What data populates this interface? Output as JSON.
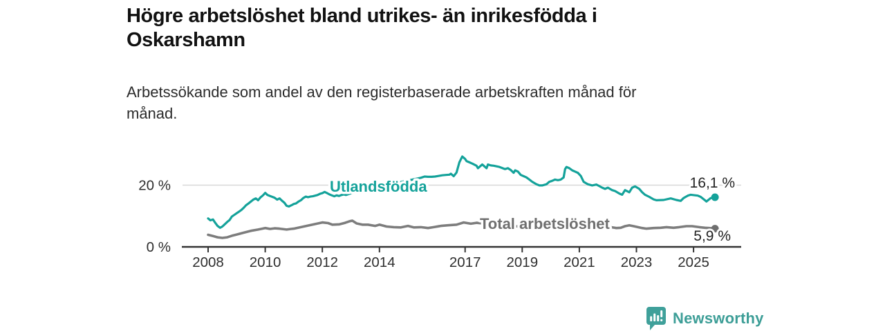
{
  "header": {
    "title": "Högre arbetslöshet bland utrikes- än inrikesfödda i Oskarshamn",
    "subtitle": "Arbetssökande som andel av den registerbaserade arbetskraften månad för månad."
  },
  "footer": {
    "brand": "Newsworthy",
    "logo_icon": "bar-chart-speech-bubble-icon"
  },
  "colors": {
    "accent_teal": "#14a29a",
    "series_gray": "#7d7d7d",
    "gray_label": "#6f6f6f",
    "axis": "#333333",
    "tick_text": "#2e2e2e",
    "value_text": "#222222",
    "gridline": "#d8d8d8",
    "logo_teal": "#3d9e97",
    "background": "#ffffff"
  },
  "chart_data": {
    "type": "line",
    "x_unit": "decimal_year",
    "x_ticks": [
      2008,
      2010,
      2012,
      2014,
      2017,
      2019,
      2021,
      2023,
      2025
    ],
    "y_ticks": [
      {
        "value": 0,
        "label": "0 %"
      },
      {
        "value": 20,
        "label": "20 %"
      }
    ],
    "xlim": [
      2007.1,
      2026.7
    ],
    "ylim": [
      0,
      30
    ],
    "grid": "single horizontal gridline at 20 %",
    "legend_position": "inline-labels-on-lines",
    "series": [
      {
        "name": "Utlandsfödda",
        "color": "#14a29a",
        "end_label": "16,1 %",
        "end_value": 16.1,
        "points": [
          [
            2008,
            9.2
          ],
          [
            2008.08,
            8.6
          ],
          [
            2008.17,
            8.9
          ],
          [
            2008.25,
            7.8
          ],
          [
            2008.33,
            6.8
          ],
          [
            2008.42,
            6.2
          ],
          [
            2008.5,
            6.6
          ],
          [
            2008.58,
            7.3
          ],
          [
            2008.67,
            8.1
          ],
          [
            2008.75,
            8.7
          ],
          [
            2008.83,
            9.8
          ],
          [
            2008.92,
            10.4
          ],
          [
            2009,
            10.9
          ],
          [
            2009.08,
            11.4
          ],
          [
            2009.17,
            12
          ],
          [
            2009.25,
            12.7
          ],
          [
            2009.33,
            13.5
          ],
          [
            2009.42,
            14.1
          ],
          [
            2009.5,
            14.7
          ],
          [
            2009.58,
            15.3
          ],
          [
            2009.67,
            15.7
          ],
          [
            2009.75,
            15.1
          ],
          [
            2009.83,
            16
          ],
          [
            2009.92,
            16.7
          ],
          [
            2010,
            17.5
          ],
          [
            2010.08,
            16.8
          ],
          [
            2010.17,
            16.5
          ],
          [
            2010.25,
            16.2
          ],
          [
            2010.33,
            15.9
          ],
          [
            2010.42,
            15.3
          ],
          [
            2010.5,
            15.7
          ],
          [
            2010.58,
            15
          ],
          [
            2010.67,
            14.3
          ],
          [
            2010.75,
            13.3
          ],
          [
            2010.83,
            13.1
          ],
          [
            2010.92,
            13.5
          ],
          [
            2011,
            13.9
          ],
          [
            2011.08,
            14.1
          ],
          [
            2011.17,
            14.7
          ],
          [
            2011.25,
            15.1
          ],
          [
            2011.33,
            15.8
          ],
          [
            2011.42,
            16.3
          ],
          [
            2011.5,
            16.1
          ],
          [
            2011.58,
            16.3
          ],
          [
            2011.67,
            16.4
          ],
          [
            2011.75,
            16.6
          ],
          [
            2011.83,
            16.8
          ],
          [
            2011.92,
            17.2
          ],
          [
            2012,
            17.4
          ],
          [
            2012.08,
            17.8
          ],
          [
            2012.17,
            17.4
          ],
          [
            2012.25,
            17
          ],
          [
            2012.33,
            16.7
          ],
          [
            2012.42,
            16.4
          ],
          [
            2012.5,
            16.7
          ],
          [
            2012.58,
            16.5
          ],
          [
            2012.67,
            16.8
          ],
          [
            2012.75,
            17
          ],
          [
            2012.83,
            16.8
          ],
          [
            2012.92,
            17.1
          ],
          [
            2013,
            17.4
          ],
          [
            2013.25,
            17.8
          ],
          [
            2013.5,
            18.3
          ],
          [
            2013.75,
            18.7
          ],
          [
            2014,
            19.2
          ],
          [
            2014.25,
            19.8
          ],
          [
            2014.5,
            20.4
          ],
          [
            2014.75,
            21
          ],
          [
            2015,
            21.5
          ],
          [
            2015.25,
            22
          ],
          [
            2015.45,
            22.4
          ],
          [
            2015.58,
            22.8
          ],
          [
            2015.7,
            22.7
          ],
          [
            2015.83,
            22.7
          ],
          [
            2015.95,
            22.8
          ],
          [
            2016.08,
            23
          ],
          [
            2016.2,
            23.2
          ],
          [
            2016.33,
            23.3
          ],
          [
            2016.45,
            23.4
          ],
          [
            2016.5,
            23.7
          ],
          [
            2016.6,
            22.9
          ],
          [
            2016.7,
            24.1
          ],
          [
            2016.8,
            27.4
          ],
          [
            2016.9,
            29.3
          ],
          [
            2017,
            28.5
          ],
          [
            2017.05,
            27.8
          ],
          [
            2017.15,
            27.4
          ],
          [
            2017.25,
            27
          ],
          [
            2017.4,
            26.3
          ],
          [
            2017.45,
            25.5
          ],
          [
            2017.6,
            26.7
          ],
          [
            2017.75,
            25.5
          ],
          [
            2017.8,
            26.7
          ],
          [
            2017.9,
            26.4
          ],
          [
            2018,
            26.3
          ],
          [
            2018.2,
            25.9
          ],
          [
            2018.4,
            25.2
          ],
          [
            2018.5,
            25.5
          ],
          [
            2018.6,
            24.9
          ],
          [
            2018.7,
            24
          ],
          [
            2018.75,
            24.8
          ],
          [
            2018.85,
            24.4
          ],
          [
            2018.95,
            23.3
          ],
          [
            2019.05,
            22.9
          ],
          [
            2019.15,
            22.5
          ],
          [
            2019.25,
            21.8
          ],
          [
            2019.35,
            21.1
          ],
          [
            2019.5,
            20.3
          ],
          [
            2019.6,
            19.9
          ],
          [
            2019.7,
            19.9
          ],
          [
            2019.85,
            20.3
          ],
          [
            2019.95,
            21.1
          ],
          [
            2020.05,
            21.4
          ],
          [
            2020.15,
            21.8
          ],
          [
            2020.25,
            21.6
          ],
          [
            2020.35,
            21.8
          ],
          [
            2020.45,
            22.5
          ],
          [
            2020.5,
            25.2
          ],
          [
            2020.55,
            25.9
          ],
          [
            2020.65,
            25.5
          ],
          [
            2020.75,
            24.8
          ],
          [
            2020.85,
            24.4
          ],
          [
            2020.95,
            24
          ],
          [
            2021.05,
            23
          ],
          [
            2021.15,
            21.1
          ],
          [
            2021.3,
            20.3
          ],
          [
            2021.45,
            19.9
          ],
          [
            2021.6,
            20.2
          ],
          [
            2021.8,
            19.2
          ],
          [
            2021.9,
            18.8
          ],
          [
            2022,
            19.2
          ],
          [
            2022.15,
            18.4
          ],
          [
            2022.25,
            18.1
          ],
          [
            2022.4,
            17.3
          ],
          [
            2022.5,
            16.9
          ],
          [
            2022.6,
            18.4
          ],
          [
            2022.75,
            17.7
          ],
          [
            2022.85,
            19.2
          ],
          [
            2022.95,
            19.6
          ],
          [
            2023.1,
            18.8
          ],
          [
            2023.2,
            17.7
          ],
          [
            2023.3,
            16.9
          ],
          [
            2023.45,
            16.2
          ],
          [
            2023.6,
            15.4
          ],
          [
            2023.7,
            15.1
          ],
          [
            2023.95,
            15.2
          ],
          [
            2024.2,
            15.7
          ],
          [
            2024.4,
            15.2
          ],
          [
            2024.55,
            14.9
          ],
          [
            2024.65,
            15.8
          ],
          [
            2024.8,
            16.6
          ],
          [
            2024.9,
            16.9
          ],
          [
            2025.15,
            16.6
          ],
          [
            2025.25,
            16.2
          ],
          [
            2025.4,
            15.1
          ],
          [
            2025.45,
            14.7
          ],
          [
            2025.6,
            15.8
          ],
          [
            2025.75,
            16.1
          ]
        ]
      },
      {
        "name": "Total arbetslöshet",
        "color": "#7d7d7d",
        "end_label": "5,9 %",
        "end_value": 5.9,
        "points": [
          [
            2008,
            3.9
          ],
          [
            2008.17,
            3.5
          ],
          [
            2008.33,
            3.1
          ],
          [
            2008.5,
            2.9
          ],
          [
            2008.67,
            3.1
          ],
          [
            2008.83,
            3.6
          ],
          [
            2009,
            4
          ],
          [
            2009.25,
            4.6
          ],
          [
            2009.5,
            5.2
          ],
          [
            2009.75,
            5.6
          ],
          [
            2010,
            6.1
          ],
          [
            2010.17,
            5.8
          ],
          [
            2010.33,
            6
          ],
          [
            2010.5,
            5.9
          ],
          [
            2010.75,
            5.6
          ],
          [
            2010.9,
            5.8
          ],
          [
            2011,
            5.9
          ],
          [
            2011.25,
            6.4
          ],
          [
            2011.5,
            6.9
          ],
          [
            2011.75,
            7.4
          ],
          [
            2012,
            7.9
          ],
          [
            2012.2,
            7.7
          ],
          [
            2012.35,
            7.2
          ],
          [
            2012.6,
            7.3
          ],
          [
            2012.8,
            7.8
          ],
          [
            2012.95,
            8.3
          ],
          [
            2013.05,
            8.5
          ],
          [
            2013.2,
            7.6
          ],
          [
            2013.4,
            7.2
          ],
          [
            2013.6,
            7.2
          ],
          [
            2013.85,
            6.8
          ],
          [
            2014,
            7.2
          ],
          [
            2014.25,
            6.6
          ],
          [
            2014.5,
            6.4
          ],
          [
            2014.75,
            6.3
          ],
          [
            2015,
            6.8
          ],
          [
            2015.2,
            6.3
          ],
          [
            2015.45,
            6.4
          ],
          [
            2015.7,
            6.1
          ],
          [
            2015.9,
            6.4
          ],
          [
            2016.15,
            6.8
          ],
          [
            2016.4,
            7
          ],
          [
            2016.7,
            7.2
          ],
          [
            2016.95,
            7.9
          ],
          [
            2017.2,
            7.5
          ],
          [
            2017.4,
            7.8
          ],
          [
            2017.6,
            7.6
          ],
          [
            2017.85,
            7
          ],
          [
            2018,
            6.9
          ],
          [
            2018.3,
            7.1
          ],
          [
            2018.6,
            6.8
          ],
          [
            2018.9,
            6.6
          ],
          [
            2019.2,
            6.8
          ],
          [
            2019.5,
            6.6
          ],
          [
            2019.8,
            6.8
          ],
          [
            2020,
            7
          ],
          [
            2020.3,
            7.2
          ],
          [
            2020.5,
            7.8
          ],
          [
            2020.75,
            7.6
          ],
          [
            2021,
            7.4
          ],
          [
            2021.3,
            7
          ],
          [
            2021.6,
            6.8
          ],
          [
            2021.9,
            6.6
          ],
          [
            2022.1,
            6.4
          ],
          [
            2022.3,
            6.1
          ],
          [
            2022.45,
            6.2
          ],
          [
            2022.6,
            6.7
          ],
          [
            2022.75,
            7
          ],
          [
            2022.9,
            6.7
          ],
          [
            2023.05,
            6.4
          ],
          [
            2023.2,
            6.1
          ],
          [
            2023.35,
            5.9
          ],
          [
            2023.6,
            6.1
          ],
          [
            2023.85,
            6.2
          ],
          [
            2024.05,
            6.4
          ],
          [
            2024.3,
            6.2
          ],
          [
            2024.5,
            6.4
          ],
          [
            2024.75,
            6.7
          ],
          [
            2024.95,
            6.7
          ],
          [
            2025.2,
            6.4
          ],
          [
            2025.4,
            6.2
          ],
          [
            2025.55,
            6.1
          ],
          [
            2025.75,
            5.9
          ]
        ]
      }
    ]
  }
}
